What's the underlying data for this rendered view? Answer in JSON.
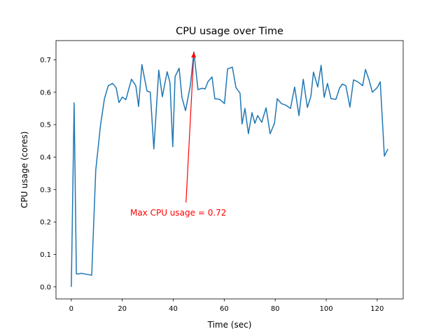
{
  "chart_data": {
    "type": "line",
    "title": "CPU usage over Time",
    "xlabel": "Time (sec)",
    "ylabel": "CPU usage (cores)",
    "xlim": [
      -6,
      130.2
    ],
    "ylim": [
      -0.037,
      0.759
    ],
    "grid": false,
    "xticks": [
      0,
      20,
      40,
      60,
      80,
      100,
      120
    ],
    "xtick_labels": [
      "0",
      "20",
      "40",
      "60",
      "80",
      "100",
      "120"
    ],
    "yticks": [
      0.0,
      0.1,
      0.2,
      0.3,
      0.4,
      0.5,
      0.6,
      0.7
    ],
    "ytick_labels": [
      "0.0",
      "0.1",
      "0.2",
      "0.3",
      "0.4",
      "0.5",
      "0.6",
      "0.7"
    ],
    "series": [
      {
        "name": "CPU usage",
        "color": "#1f77b4",
        "x": [
          0,
          1.1,
          2.0,
          3,
          4,
          5.2,
          8,
          9.6,
          11.5,
          13,
          14.5,
          16.2,
          17.6,
          18.7,
          20,
          21.4,
          23.6,
          25.3,
          26.4,
          27.7,
          29.7,
          31,
          32.4,
          34.3,
          35.7,
          37.6,
          38.7,
          39.8,
          40.7,
          42.3,
          43.4,
          44.8,
          46.7,
          48.1,
          49.7,
          51.4,
          52.5,
          53.6,
          55.2,
          56.3,
          58.2,
          60.1,
          61.3,
          63.2,
          64.6,
          66.2,
          67,
          68.1,
          69.5,
          70.9,
          72,
          73.1,
          74.7,
          76.4,
          78,
          79.7,
          80.8,
          82.4,
          84.1,
          86,
          87.6,
          89.3,
          91,
          92.6,
          94,
          95,
          96.7,
          98,
          99.2,
          100.5,
          101.9,
          103.8,
          105.2,
          106.3,
          107.7,
          109.3,
          110.7,
          112.4,
          114.3,
          115.4,
          116.8,
          118.1,
          120,
          121.2,
          122.8,
          124.2
        ],
        "y": [
          0.0,
          0.567,
          0.04,
          0.04,
          0.042,
          0.04,
          0.036,
          0.36,
          0.5,
          0.58,
          0.62,
          0.627,
          0.614,
          0.568,
          0.585,
          0.577,
          0.64,
          0.62,
          0.556,
          0.685,
          0.604,
          0.6,
          0.425,
          0.668,
          0.586,
          0.663,
          0.63,
          0.432,
          0.648,
          0.674,
          0.584,
          0.543,
          0.62,
          0.724,
          0.608,
          0.612,
          0.61,
          0.632,
          0.647,
          0.58,
          0.578,
          0.565,
          0.672,
          0.677,
          0.614,
          0.597,
          0.502,
          0.55,
          0.472,
          0.537,
          0.504,
          0.528,
          0.507,
          0.552,
          0.472,
          0.504,
          0.58,
          0.565,
          0.56,
          0.55,
          0.616,
          0.528,
          0.64,
          0.553,
          0.588,
          0.662,
          0.616,
          0.683,
          0.584,
          0.627,
          0.58,
          0.578,
          0.612,
          0.625,
          0.62,
          0.554,
          0.638,
          0.632,
          0.62,
          0.67,
          0.638,
          0.6,
          0.614,
          0.632,
          0.403,
          0.425
        ]
      }
    ],
    "annotations": [
      {
        "text": "Max CPU usage = 0.72",
        "color": "#ff0000",
        "xy": [
          48.1,
          0.724
        ],
        "xytext": [
          23.1,
          0.22
        ],
        "arrow_tail": [
          45,
          0.26
        ]
      }
    ]
  }
}
